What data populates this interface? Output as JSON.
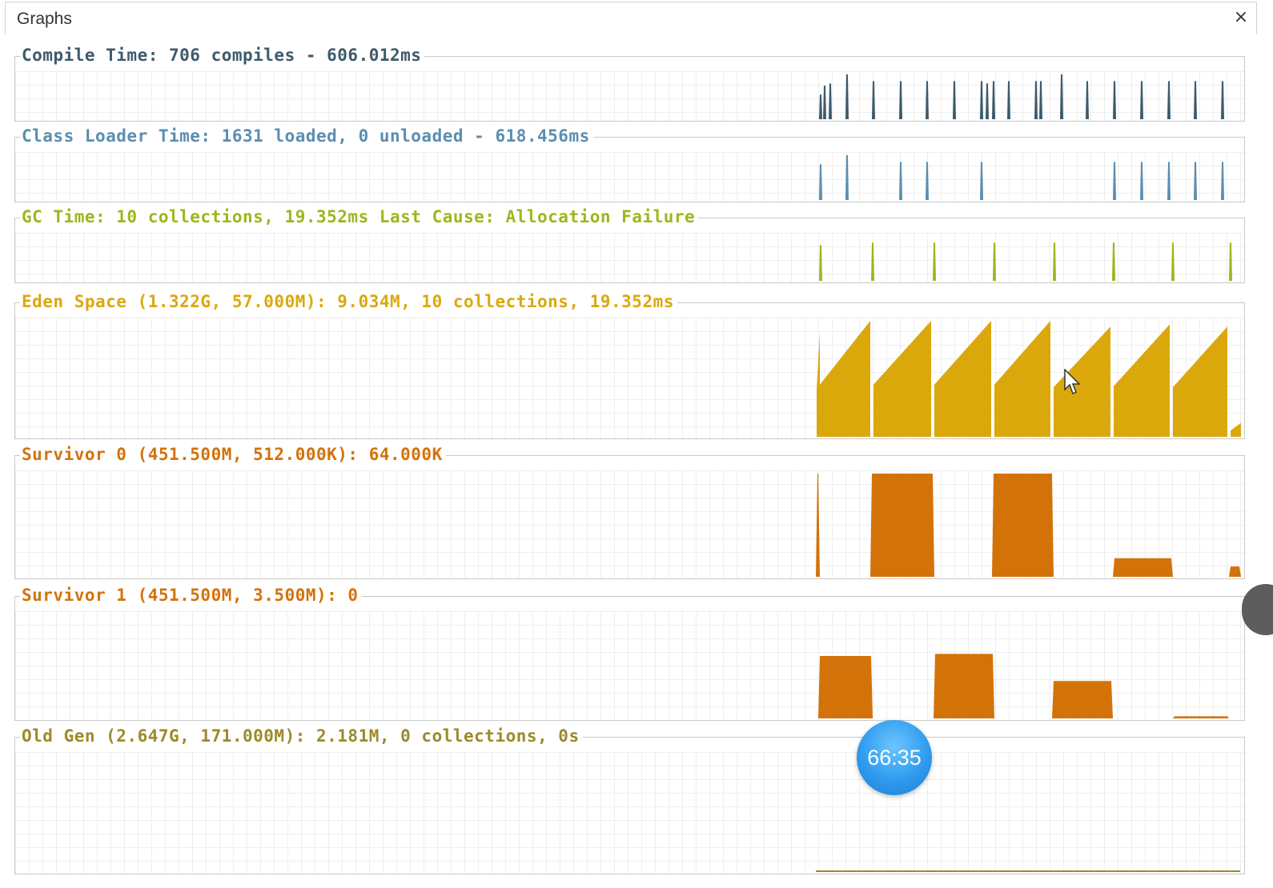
{
  "tab": {
    "title": "Graphs",
    "close_label": "×"
  },
  "graphs": [
    {
      "label": "Compile Time: 706 compiles - 606.012ms",
      "color": "#3d5a6c",
      "type": "spikes",
      "spikes": [
        1025,
        1030,
        1037,
        1058,
        1091,
        1125,
        1158,
        1192,
        1226,
        1233,
        1241,
        1260,
        1294,
        1300,
        1326,
        1358,
        1392,
        1426,
        1460,
        1493,
        1527
      ],
      "heights": [
        0.55,
        0.75,
        0.8,
        1.0,
        0.85,
        0.85,
        0.85,
        0.85,
        0.85,
        0.8,
        0.85,
        0.85,
        0.85,
        0.85,
        1.0,
        0.85,
        0.85,
        0.85,
        0.85,
        0.85,
        0.85
      ]
    },
    {
      "label": "Class Loader Time: 1631 loaded, 0 unloaded - 618.456ms",
      "color": "#5b8eb0",
      "type": "spikes",
      "spikes": [
        1025,
        1058,
        1125,
        1158,
        1226,
        1392,
        1426,
        1460,
        1493,
        1527
      ],
      "heights": [
        0.8,
        1.0,
        0.85,
        0.85,
        0.85,
        0.85,
        0.85,
        0.85,
        0.85,
        0.85
      ]
    },
    {
      "label": "GC Time: 10 collections, 19.352ms Last Cause: Allocation Failure",
      "color": "#9ab81c",
      "type": "spikes",
      "spikes": [
        1025,
        1090,
        1167,
        1242,
        1317,
        1391,
        1465,
        1537
      ],
      "heights": [
        0.8,
        0.85,
        0.85,
        0.85,
        0.85,
        0.85,
        0.85,
        0.85
      ]
    },
    {
      "label": "Eden Space (1.322G, 57.000M): 9.034M, 10 collections, 19.352ms",
      "color": "#dba80c",
      "type": "saw",
      "teeth": [
        [
          1020,
          1024,
          0.9
        ],
        [
          1024,
          1087,
          1.0
        ],
        [
          1091,
          1163,
          1.0
        ],
        [
          1167,
          1238,
          1.0
        ],
        [
          1242,
          1312,
          1.0
        ],
        [
          1316,
          1387,
          0.95
        ],
        [
          1391,
          1461,
          0.97
        ],
        [
          1465,
          1533,
          0.95
        ],
        [
          1537,
          1550,
          0.12
        ]
      ]
    },
    {
      "label": "Survivor 0 (451.500M, 512.000K): 64.000K",
      "color": "#d4720a",
      "type": "blocks",
      "blocks": [
        [
          1019,
          1024,
          1.0
        ],
        [
          1087,
          1167,
          1.0
        ],
        [
          1239,
          1316,
          1.0
        ],
        [
          1390,
          1465,
          0.18
        ],
        [
          1535,
          1550,
          0.1
        ]
      ]
    },
    {
      "label": "Survivor 1 (451.500M, 3.500M): 0",
      "color": "#d4720a",
      "type": "blocks",
      "blocks": [
        [
          1022,
          1090,
          0.6
        ],
        [
          1166,
          1242,
          0.62
        ],
        [
          1314,
          1390,
          0.36
        ],
        [
          1465,
          1535,
          0.02
        ]
      ]
    },
    {
      "label": "Old Gen (2.647G, 171.000M): 2.181M, 0 collections, 0s",
      "color": "#9c8a2a",
      "type": "line"
    }
  ],
  "timer": {
    "text": "66:35"
  }
}
